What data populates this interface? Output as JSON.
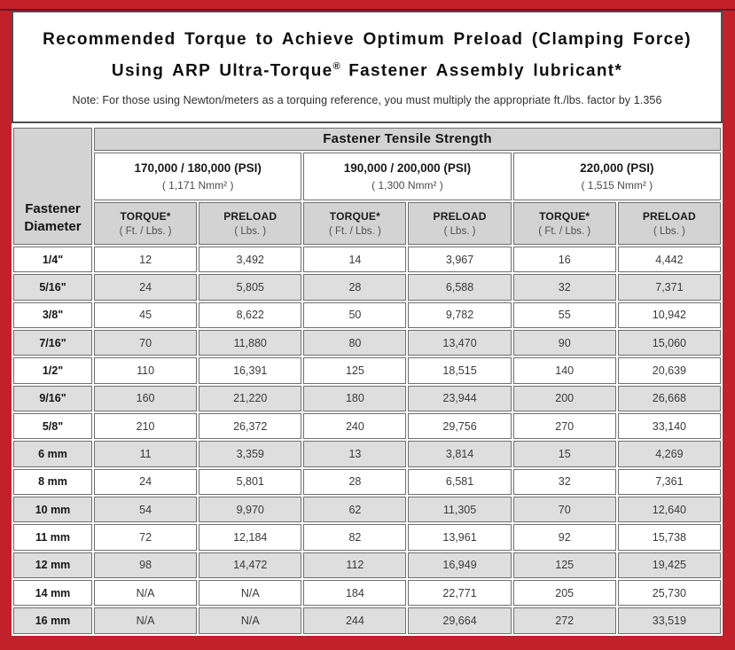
{
  "header": {
    "title_line1": "Recommended Torque to Achieve Optimum Preload (Clamping Force)",
    "title2_pre": "Using ARP Ultra-Torque",
    "title2_sup": "®",
    "title2_post": " Fastener Assembly lubricant*",
    "note": "Note: For those using Newton/meters as a torquing reference, you must multiply the appropriate ft./lbs. factor by 1.356"
  },
  "colors": {
    "frame_red": "#c2202a",
    "pinstripe_maroon": "#6d141c",
    "header_gray": "#d3d3d3",
    "alt_row_gray": "#dedede",
    "cell_border_gray": "#6f6f6f"
  },
  "table": {
    "tensile_header": "Fastener Tensile Strength",
    "corner": {
      "line1": "Fastener",
      "line2": "Diameter"
    },
    "groups": [
      {
        "psi": "170,000 / 180,000 (PSI)",
        "nmm": "( 1,171 Nmm² )"
      },
      {
        "psi": "190,000 / 200,000 (PSI)",
        "nmm": "( 1,300 Nmm² )"
      },
      {
        "psi": "220,000 (PSI)",
        "nmm": "( 1,515 Nmm² )"
      }
    ],
    "torque_label": "TORQUE*",
    "torque_unit": "( Ft. / Lbs. )",
    "preload_label": "PRELOAD",
    "preload_unit": "( Lbs. )",
    "rows": [
      {
        "dia": "1/4\"",
        "values": [
          "12",
          "3,492",
          "14",
          "3,967",
          "16",
          "4,442"
        ]
      },
      {
        "dia": "5/16\"",
        "values": [
          "24",
          "5,805",
          "28",
          "6,588",
          "32",
          "7,371"
        ]
      },
      {
        "dia": "3/8\"",
        "values": [
          "45",
          "8,622",
          "50",
          "9,782",
          "55",
          "10,942"
        ]
      },
      {
        "dia": "7/16\"",
        "values": [
          "70",
          "11,880",
          "80",
          "13,470",
          "90",
          "15,060"
        ]
      },
      {
        "dia": "1/2\"",
        "values": [
          "110",
          "16,391",
          "125",
          "18,515",
          "140",
          "20,639"
        ]
      },
      {
        "dia": "9/16\"",
        "values": [
          "160",
          "21,220",
          "180",
          "23,944",
          "200",
          "26,668"
        ]
      },
      {
        "dia": "5/8\"",
        "values": [
          "210",
          "26,372",
          "240",
          "29,756",
          "270",
          "33,140"
        ]
      },
      {
        "dia": "6 mm",
        "values": [
          "11",
          "3,359",
          "13",
          "3,814",
          "15",
          "4,269"
        ]
      },
      {
        "dia": "8 mm",
        "values": [
          "24",
          "5,801",
          "28",
          "6,581",
          "32",
          "7,361"
        ]
      },
      {
        "dia": "10 mm",
        "values": [
          "54",
          "9,970",
          "62",
          "11,305",
          "70",
          "12,640"
        ]
      },
      {
        "dia": "11 mm",
        "values": [
          "72",
          "12,184",
          "82",
          "13,961",
          "92",
          "15,738"
        ]
      },
      {
        "dia": "12 mm",
        "values": [
          "98",
          "14,472",
          "112",
          "16,949",
          "125",
          "19,425"
        ]
      },
      {
        "dia": "14 mm",
        "values": [
          "N/A",
          "N/A",
          "184",
          "22,771",
          "205",
          "25,730"
        ]
      },
      {
        "dia": "16 mm",
        "values": [
          "N/A",
          "N/A",
          "244",
          "29,664",
          "272",
          "33,519"
        ]
      }
    ]
  }
}
